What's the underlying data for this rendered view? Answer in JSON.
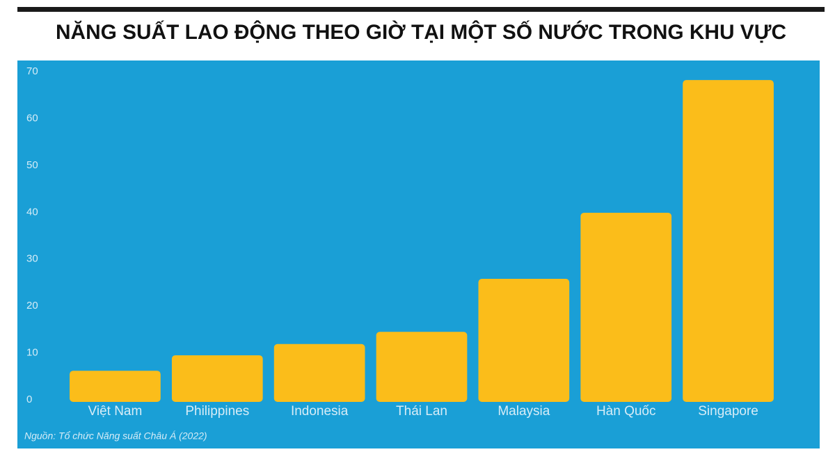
{
  "chart_data": {
    "type": "bar",
    "title": "NĂNG SUẤT LAO ĐỘNG THEO GIỜ TẠI MỘT SỐ NƯỚC TRONG KHU VỰC",
    "categories": [
      "Việt Nam",
      "Philippines",
      "Indonesia",
      "Thái Lan",
      "Malaysia",
      "Hàn Quốc",
      "Singapore"
    ],
    "values": [
      6.2,
      9.5,
      11.9,
      14.5,
      25.8,
      39.9,
      68.2
    ],
    "color": "#fbbd1a",
    "ylim": [
      0,
      70
    ],
    "yticks": [
      0,
      10,
      20,
      30,
      40,
      50,
      60,
      70
    ],
    "grid": false,
    "source": "Nguồn: Tổ chức Năng suất Châu Á (2022)"
  }
}
